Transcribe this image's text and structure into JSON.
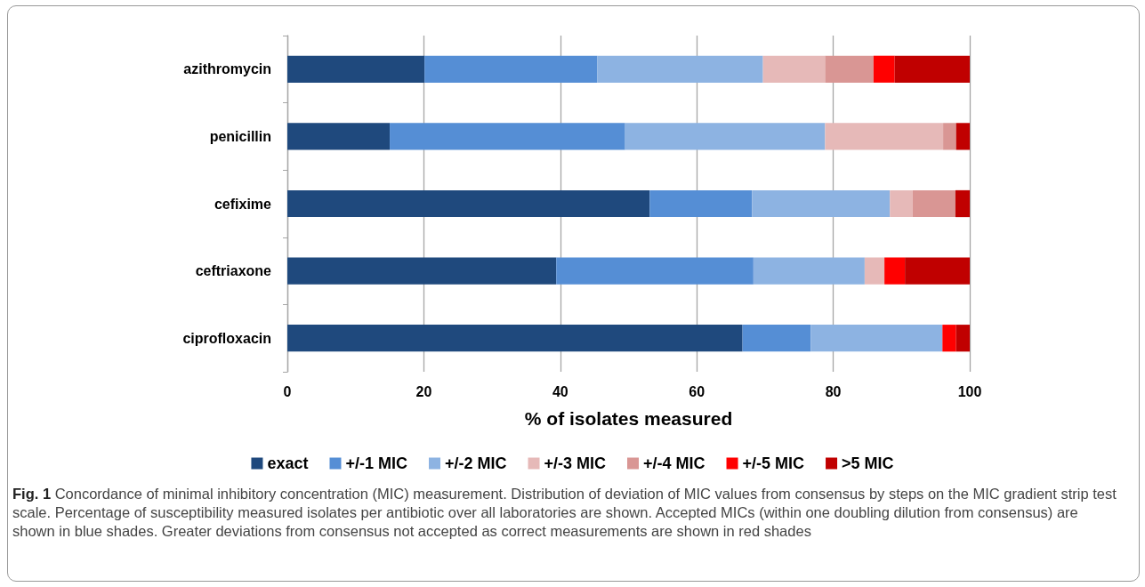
{
  "chart_data": {
    "type": "bar",
    "orientation": "horizontal",
    "stacked": true,
    "categories": [
      "azithromycin",
      "penicillin",
      "cefixime",
      "ceftriaxone",
      "ciprofloxacin"
    ],
    "series": [
      {
        "name": "exact",
        "color": "#1f497d",
        "values": [
          20.1,
          15.0,
          53.1,
          39.4,
          66.7
        ]
      },
      {
        "name": "+/-1 MIC",
        "color": "#558ed5",
        "values": [
          25.3,
          34.5,
          15.0,
          28.9,
          10.0
        ]
      },
      {
        "name": "+/-2 MIC",
        "color": "#8db3e2",
        "values": [
          24.3,
          29.3,
          20.2,
          16.3,
          19.3
        ]
      },
      {
        "name": "+/-3 MIC",
        "color": "#e6b9b8",
        "values": [
          9.1,
          17.3,
          3.3,
          2.9,
          null
        ]
      },
      {
        "name": "+/-4 MIC",
        "color": "#d99694",
        "values": [
          7.1,
          1.9,
          6.3,
          null,
          null
        ]
      },
      {
        "name": "+/-5 MIC",
        "color": "#ff0000",
        "values": [
          3.1,
          null,
          null,
          3.0,
          2.0
        ]
      },
      {
        "name": ">5 MIC",
        "color": "#c00000",
        "values": [
          11.0,
          2.0,
          2.1,
          9.5,
          2.0
        ]
      }
    ],
    "xlabel": "% of isolates measured",
    "xlim": [
      0,
      100
    ],
    "xticks": [
      0,
      20,
      40,
      60,
      80,
      100
    ],
    "grid": "x",
    "legend": "bottom",
    "annotations": [
      "Fig. 1 Concordance of minimal inhibitory concentration (MIC) measurement. Distribution of deviation of MIC values from consensus by steps on the MIC gradient strip test scale. Percentage of susceptibility measured isolates per antibiotic over all laboratories are shown. Accepted MICs (within one doubling dilution from consensus) are shown in blue shades. Greater deviations from consensus not accepted as correct measurements are shown in red shades"
    ]
  }
}
